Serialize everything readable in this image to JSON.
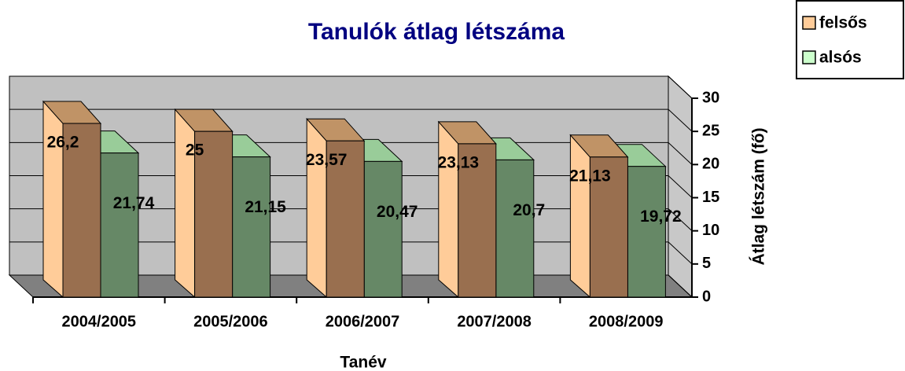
{
  "chart_data": {
    "type": "bar3d",
    "title": "Tanulók átlag létszáma",
    "xlabel": "Tanév",
    "ylabel": "Átlag létszám (fő)",
    "categories": [
      "2004/2005",
      "2005/2006",
      "2006/2007",
      "2007/2008",
      "2008/2009"
    ],
    "series": [
      {
        "name": "felsős",
        "color": "#ffcc99",
        "values": [
          26.2,
          25,
          23.57,
          23.13,
          21.13
        ],
        "value_labels": [
          "26,2",
          "25",
          "23,57",
          "23,13",
          "21,13"
        ]
      },
      {
        "name": "alsós",
        "color": "#ccffcc",
        "values": [
          21.74,
          21.15,
          20.47,
          20.7,
          19.72
        ],
        "value_labels": [
          "21,74",
          "21,15",
          "20,47",
          "20,7",
          "19,72"
        ]
      }
    ],
    "ylim": [
      0,
      30
    ],
    "yticks": [
      0,
      5,
      10,
      15,
      20,
      25,
      30
    ],
    "grid": true,
    "legend": "top-right"
  }
}
